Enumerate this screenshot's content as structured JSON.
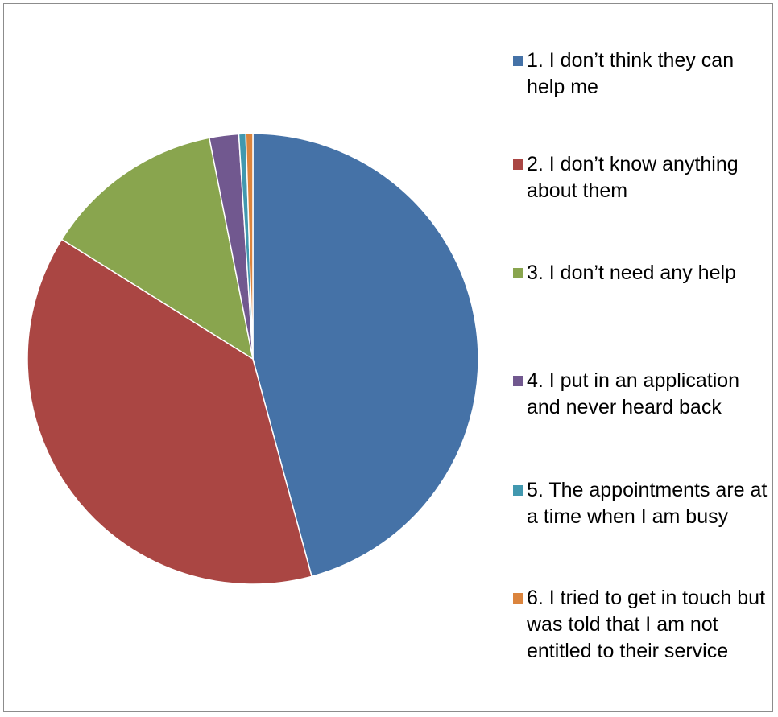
{
  "chart_data": {
    "type": "pie",
    "legend_position": "right",
    "start_angle_deg": 0,
    "direction": "clockwise",
    "slices": [
      {
        "label": "1. I don’t think they can help me",
        "value": 45.8,
        "color": "#4572A7"
      },
      {
        "label": "2. I don’t know anything about them",
        "value": 38.1,
        "color": "#AA4643"
      },
      {
        "label": "3. I don’t need any help",
        "value": 13.0,
        "color": "#89A54E"
      },
      {
        "label": "4. I put in an application and never heard back",
        "value": 2.1,
        "color": "#71588F"
      },
      {
        "label": "5. The appointments are at a time when I am busy",
        "value": 0.5,
        "color": "#4198AF"
      },
      {
        "label": "6. I tried to get in touch but was told that I am not entitled to their service",
        "value": 0.5,
        "color": "#DB843D"
      }
    ]
  }
}
